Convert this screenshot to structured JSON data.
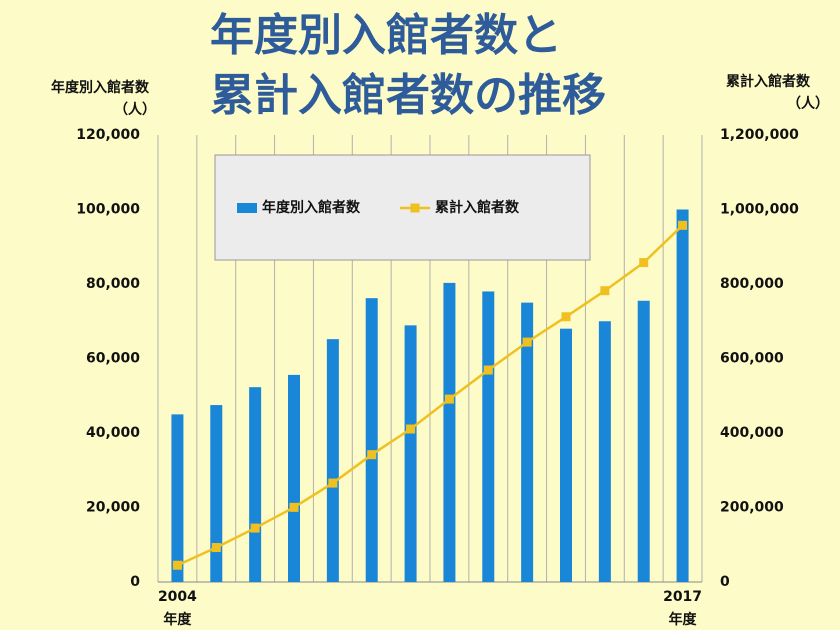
{
  "chart_data": {
    "type": "bar",
    "title": [
      "年度別入館者数と",
      "累計入館者数の推移"
    ],
    "ylabel": [
      "年度別入館者数",
      "（人）"
    ],
    "y2label": [
      "累計入館者数",
      "（人）"
    ],
    "x_unit": "年度",
    "categories": [
      "2004",
      null,
      null,
      null,
      null,
      null,
      null,
      null,
      null,
      null,
      null,
      null,
      null,
      "2017"
    ],
    "series": [
      {
        "name": "年度別入館者数",
        "type": "bar",
        "color": "#1a86d8",
        "values": [
          45000,
          47500,
          52300,
          55600,
          65200,
          76200,
          68900,
          80300,
          78000,
          75000,
          68000,
          70000,
          75500,
          100000
        ]
      },
      {
        "name": "累計入館者数",
        "type": "line",
        "axis": "y2",
        "color": "#f0c020",
        "values": [
          45000,
          92500,
          144800,
          200400,
          265600,
          341800,
          410700,
          491000,
          569000,
          644000,
          712000,
          782000,
          857500,
          957500
        ]
      }
    ],
    "ylim": [
      0,
      120000
    ],
    "yticks": [
      0,
      {
        "value": 20000,
        "label": "20,000"
      },
      {
        "value": 40000,
        "label": "40,000"
      },
      {
        "value": 60000,
        "label": "60,000"
      },
      {
        "value": 80000,
        "label": "80,000"
      },
      {
        "value": 100000,
        "label": "100,000"
      },
      {
        "value": 120000,
        "label": "120,000"
      }
    ],
    "y2lim": [
      0,
      1200000
    ],
    "y2ticks": [
      0,
      {
        "value": 200000,
        "label": "200,000"
      },
      {
        "value": 400000,
        "label": "400,000"
      },
      {
        "value": 600000,
        "label": "600,000"
      },
      {
        "value": 800000,
        "label": "800,000"
      },
      {
        "value": 1000000,
        "label": "1,000,000"
      },
      {
        "value": 1200000,
        "label": "1,200,000"
      }
    ]
  }
}
